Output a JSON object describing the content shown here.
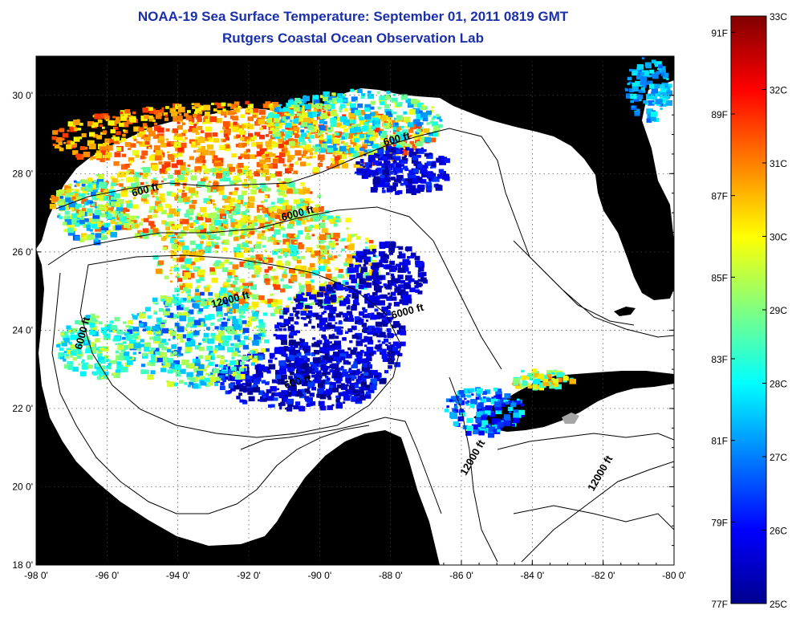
{
  "title": "NOAA-19 Sea Surface Temperature:  September 01, 2011 0819 GMT",
  "subtitle": "Rutgers Coastal Ocean Observation Lab",
  "map": {
    "lon_range": [
      -98,
      -80
    ],
    "lat_range": [
      18,
      31
    ],
    "lon_ticks": [
      "-98 0'",
      "-96 0'",
      "-94 0'",
      "-92 0'",
      "-90 0'",
      "-88 0'",
      "-86 0'",
      "-84 0'",
      "-82 0'",
      "-80 0'"
    ],
    "lat_ticks": [
      "18 0'",
      "20 0'",
      "22 0'",
      "24 0'",
      "26 0'",
      "28 0'",
      "30 0'"
    ],
    "land_color": "#a6a6a6",
    "water_color": "#ffffff",
    "grid": "dotted",
    "depth_labels": [
      {
        "text": "600 ft",
        "lon": -94.9,
        "lat": 27.5
      },
      {
        "text": "600 ft",
        "lon": -87.8,
        "lat": 28.8
      },
      {
        "text": "6000 ft",
        "lon": -90.6,
        "lat": 26.9
      },
      {
        "text": "12000 ft",
        "lon": -92.5,
        "lat": 24.7
      },
      {
        "text": "6000 ft",
        "lon": -87.5,
        "lat": 24.4
      },
      {
        "text": "6000 ft",
        "lon": -96.6,
        "lat": 23.9
      },
      {
        "text": "600 ft",
        "lon": -90.6,
        "lat": 22.6
      },
      {
        "text": "12000 ft",
        "lon": -85.6,
        "lat": 20.7
      },
      {
        "text": "12000 ft",
        "lon": -82.0,
        "lat": 20.3
      }
    ]
  },
  "colorbar": {
    "celsius": [
      "33C",
      "32C",
      "31C",
      "30C",
      "29C",
      "28C",
      "27C",
      "26C",
      "25C"
    ],
    "fahrenheit": [
      "91F",
      "89F",
      "87F",
      "85F",
      "83F",
      "81F",
      "79F",
      "77F"
    ],
    "range_c": [
      25,
      33
    ],
    "colormap": "jet"
  }
}
